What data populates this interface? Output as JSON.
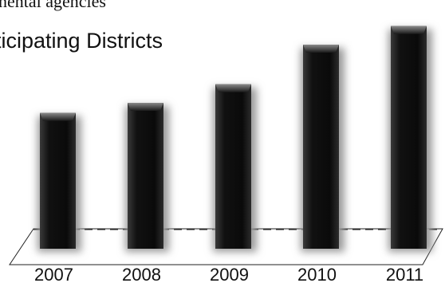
{
  "header": {
    "clipped_line": "nental agencies",
    "chart_title": "ticipating Districts"
  },
  "chart_data": {
    "type": "bar",
    "title": "ticipating Districts",
    "categories": [
      "2007",
      "2008",
      "2009",
      "2010",
      "2011"
    ],
    "values": [
      175,
      188,
      212,
      263,
      287
    ],
    "xlabel": "",
    "ylabel": "",
    "ylim": [
      0,
      300
    ],
    "grid": false,
    "legend": "none",
    "colors": {
      "bar": "#0b0b0b",
      "bar_highlight": "#6a6a6a",
      "shadow": "#9a9a9a",
      "floor_line": "#222222"
    }
  }
}
